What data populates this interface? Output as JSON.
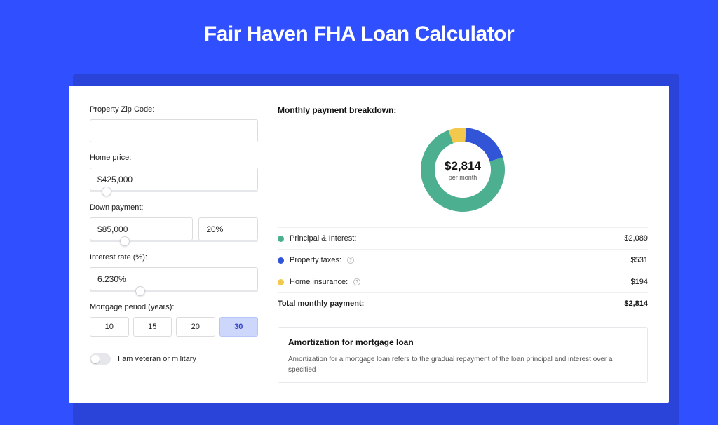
{
  "page": {
    "title": "Fair Haven FHA Loan Calculator",
    "background_color": "#304ffe",
    "shadow_color": "#2a43d8",
    "card_bg": "#ffffff"
  },
  "form": {
    "zip": {
      "label": "Property Zip Code:",
      "value": ""
    },
    "home_price": {
      "label": "Home price:",
      "value": "$425,000",
      "slider_pct": 10
    },
    "down_payment": {
      "label": "Down payment:",
      "value": "$85,000",
      "pct_value": "20%",
      "slider_pct": 21
    },
    "interest_rate": {
      "label": "Interest rate (%):",
      "value": "6.230%",
      "slider_pct": 30
    },
    "mortgage_period": {
      "label": "Mortgage period (years):",
      "options": [
        "10",
        "15",
        "20",
        "30"
      ],
      "selected_index": 3
    },
    "veteran": {
      "label": "I am veteran or military",
      "on": false
    }
  },
  "breakdown": {
    "title": "Monthly payment breakdown:",
    "center_amount": "$2,814",
    "center_sub": "per month",
    "donut": {
      "size": 128,
      "thickness": 20,
      "bg": "#ffffff",
      "segments": [
        {
          "label": "Principal & Interest:",
          "value": "$2,089",
          "color": "#4caf8f",
          "fraction": 0.742,
          "info": false
        },
        {
          "label": "Property taxes:",
          "value": "$531",
          "color": "#3155d6",
          "fraction": 0.189,
          "info": true
        },
        {
          "label": "Home insurance:",
          "value": "$194",
          "color": "#f2c94c",
          "fraction": 0.069,
          "info": true
        }
      ]
    },
    "total": {
      "label": "Total monthly payment:",
      "value": "$2,814"
    }
  },
  "amortization": {
    "title": "Amortization for mortgage loan",
    "text": "Amortization for a mortgage loan refers to the gradual repayment of the loan principal and interest over a specified"
  }
}
